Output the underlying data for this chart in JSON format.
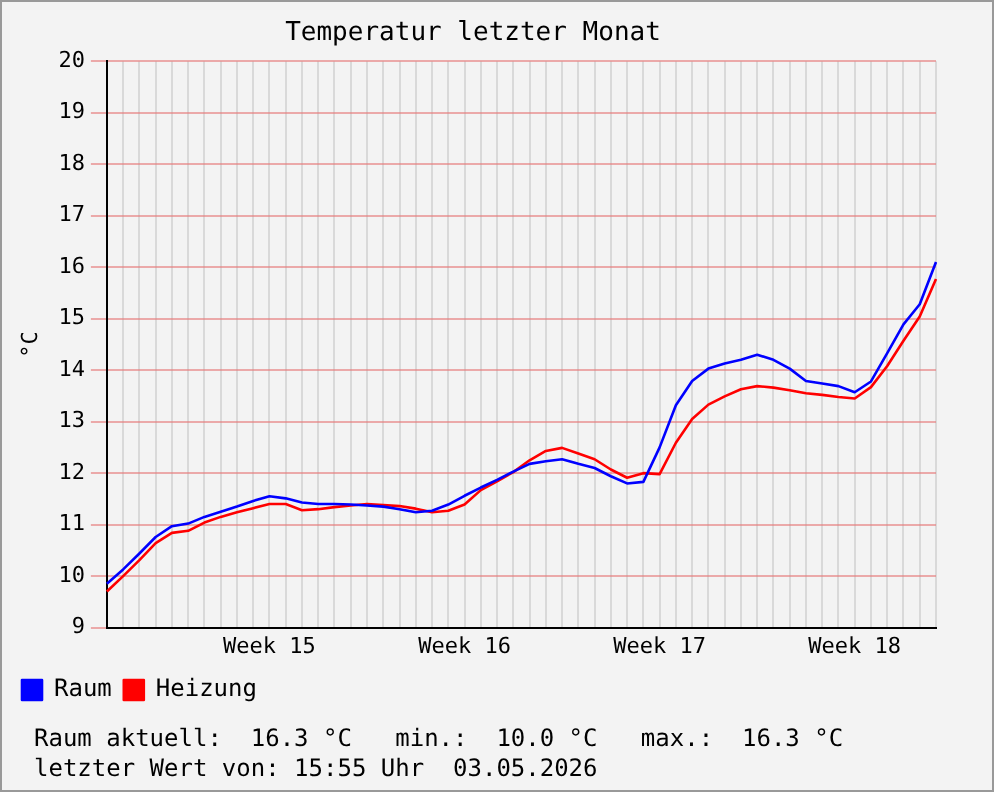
{
  "chart_data": {
    "type": "line",
    "title": "Temperatur letzter Monat",
    "ylabel": "°C",
    "categories": [
      null,
      null,
      null,
      null,
      null,
      null,
      null,
      null,
      null,
      null,
      "Week 15",
      null,
      null,
      null,
      null,
      null,
      null,
      null,
      null,
      null,
      null,
      null,
      "Week 16",
      null,
      null,
      null,
      null,
      null,
      null,
      null,
      null,
      null,
      null,
      null,
      "Week 17",
      null,
      null,
      null,
      null,
      null,
      null,
      null,
      null,
      null,
      null,
      null,
      "Week 18",
      null,
      null,
      null,
      null,
      null
    ],
    "ylim": [
      9,
      20
    ],
    "yticks": [
      9,
      10,
      11,
      12,
      13,
      14,
      15,
      16,
      17,
      18,
      19,
      20
    ],
    "grid": true,
    "legend": "bottom left",
    "marker": "none",
    "line_style": "solid",
    "series": [
      {
        "name": "Raum",
        "color": "#0000ff",
        "values": [
          9.85,
          10.13,
          10.44,
          10.76,
          10.97,
          11.02,
          11.15,
          11.25,
          11.35,
          11.46,
          11.55,
          11.51,
          11.43,
          11.4,
          11.4,
          11.39,
          11.37,
          11.35,
          11.3,
          11.24,
          11.27,
          11.39,
          11.56,
          11.72,
          11.87,
          12.03,
          12.18,
          12.23,
          12.27,
          12.18,
          12.1,
          11.94,
          11.8,
          11.83,
          12.5,
          13.32,
          13.79,
          14.03,
          14.13,
          14.2,
          14.3,
          14.2,
          14.03,
          13.79,
          13.74,
          13.69,
          13.57,
          13.78,
          14.33,
          14.89,
          15.28,
          16.1
        ]
      },
      {
        "name": "Heizung",
        "color": "#ff0000",
        "values": [
          9.7,
          10.0,
          10.31,
          10.64,
          10.84,
          10.88,
          11.04,
          11.15,
          11.24,
          11.32,
          11.4,
          11.4,
          11.28,
          11.3,
          11.34,
          11.37,
          11.4,
          11.38,
          11.36,
          11.31,
          11.24,
          11.27,
          11.39,
          11.67,
          11.84,
          12.02,
          12.25,
          12.43,
          12.49,
          12.38,
          12.27,
          12.07,
          11.91,
          12.0,
          11.98,
          12.59,
          13.05,
          13.33,
          13.49,
          13.63,
          13.69,
          13.66,
          13.61,
          13.55,
          13.52,
          13.48,
          13.45,
          13.67,
          14.08,
          14.57,
          15.04,
          15.77
        ]
      }
    ],
    "annotations": [
      "Raum aktuell:  16.3 °C   min.:  10.0 °C   max.:  16.3 °C",
      "letzter Wert von: 15:55 Uhr  03.05.2026"
    ]
  }
}
